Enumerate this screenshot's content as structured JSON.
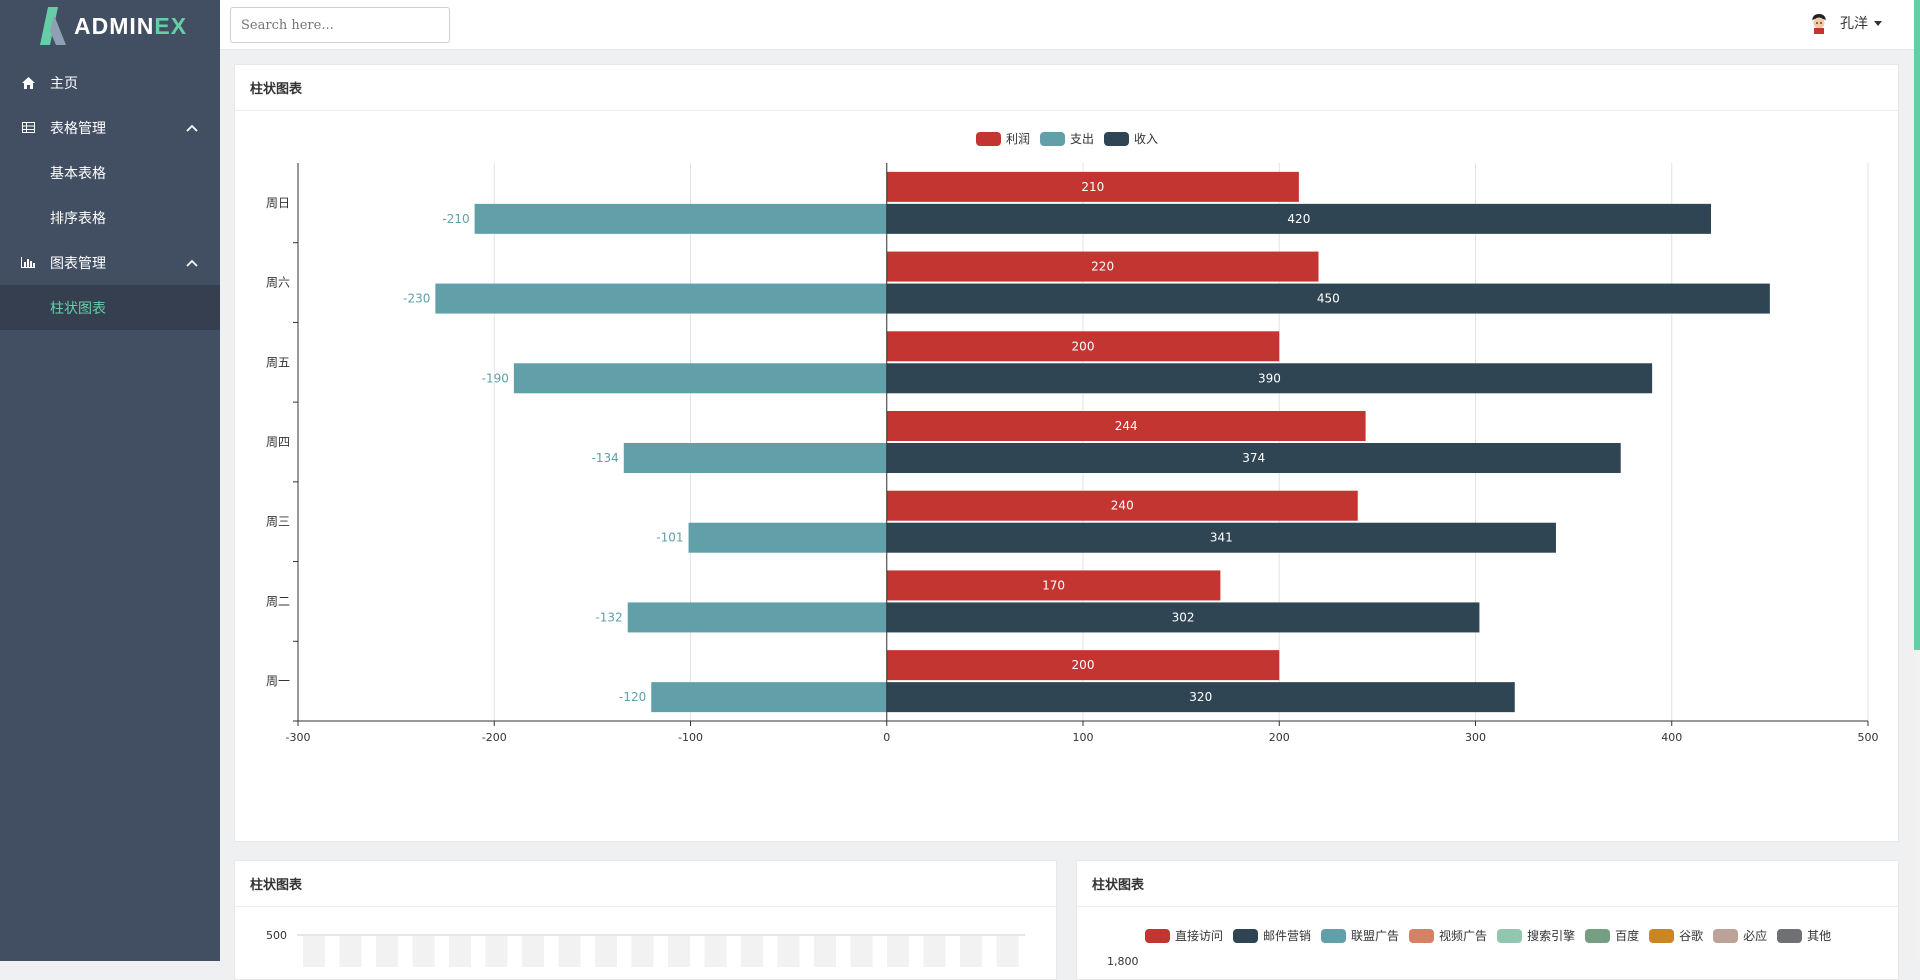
{
  "app": {
    "logo_main": "ADMIN",
    "logo_accent": "EX"
  },
  "sidebar": {
    "items": [
      {
        "label": "主页",
        "icon": "home-icon"
      },
      {
        "label": "表格管理",
        "icon": "table-icon"
      },
      {
        "label": "基本表格"
      },
      {
        "label": "排序表格"
      },
      {
        "label": "图表管理",
        "icon": "bar-chart-icon"
      },
      {
        "label": "柱状图表"
      }
    ]
  },
  "topbar": {
    "search_placeholder": "Search here...",
    "user_name": "孔洋"
  },
  "panels": {
    "main_title": "柱状图表",
    "bottom_left_title": "柱状图表",
    "bottom_right_title": "柱状图表",
    "bottom_left_tick": "500",
    "bottom_right_tick": "1,800"
  },
  "colors": {
    "profit": "#c23531",
    "expense": "#61a0a8",
    "income": "#2f4554",
    "accent": "#65cea7",
    "sidebar": "#424f63"
  },
  "chart_data": [
    {
      "type": "bar",
      "orientation": "horizontal",
      "title": "柱状图表",
      "categories": [
        "周一",
        "周二",
        "周三",
        "周四",
        "周五",
        "周六",
        "周日"
      ],
      "series": [
        {
          "name": "利润",
          "values": [
            200,
            170,
            240,
            244,
            200,
            220,
            210
          ]
        },
        {
          "name": "支出",
          "values": [
            -120,
            -132,
            -101,
            -134,
            -190,
            -230,
            -210
          ]
        },
        {
          "name": "收入",
          "values": [
            320,
            302,
            341,
            374,
            390,
            450,
            420
          ]
        }
      ],
      "xlim": [
        -300,
        500
      ],
      "xticks": [
        "-300",
        "-200",
        "-100",
        "0",
        "100",
        "200",
        "300",
        "400",
        "500"
      ],
      "legend": "top-center",
      "grid": true
    },
    {
      "type": "bar",
      "title": "柱状图表",
      "ytick_visible": "500"
    },
    {
      "type": "bar",
      "title": "柱状图表",
      "legend_entries": [
        "直接访问",
        "邮件营销",
        "联盟广告",
        "视频广告",
        "搜索引擎",
        "百度",
        "谷歌",
        "必应",
        "其他"
      ],
      "legend_colors": [
        "#c23531",
        "#2f4554",
        "#61a0a8",
        "#d48265",
        "#91c7ae",
        "#749f83",
        "#ca8622",
        "#bda29a",
        "#6e7074"
      ],
      "ytick_visible": "1,800"
    }
  ]
}
